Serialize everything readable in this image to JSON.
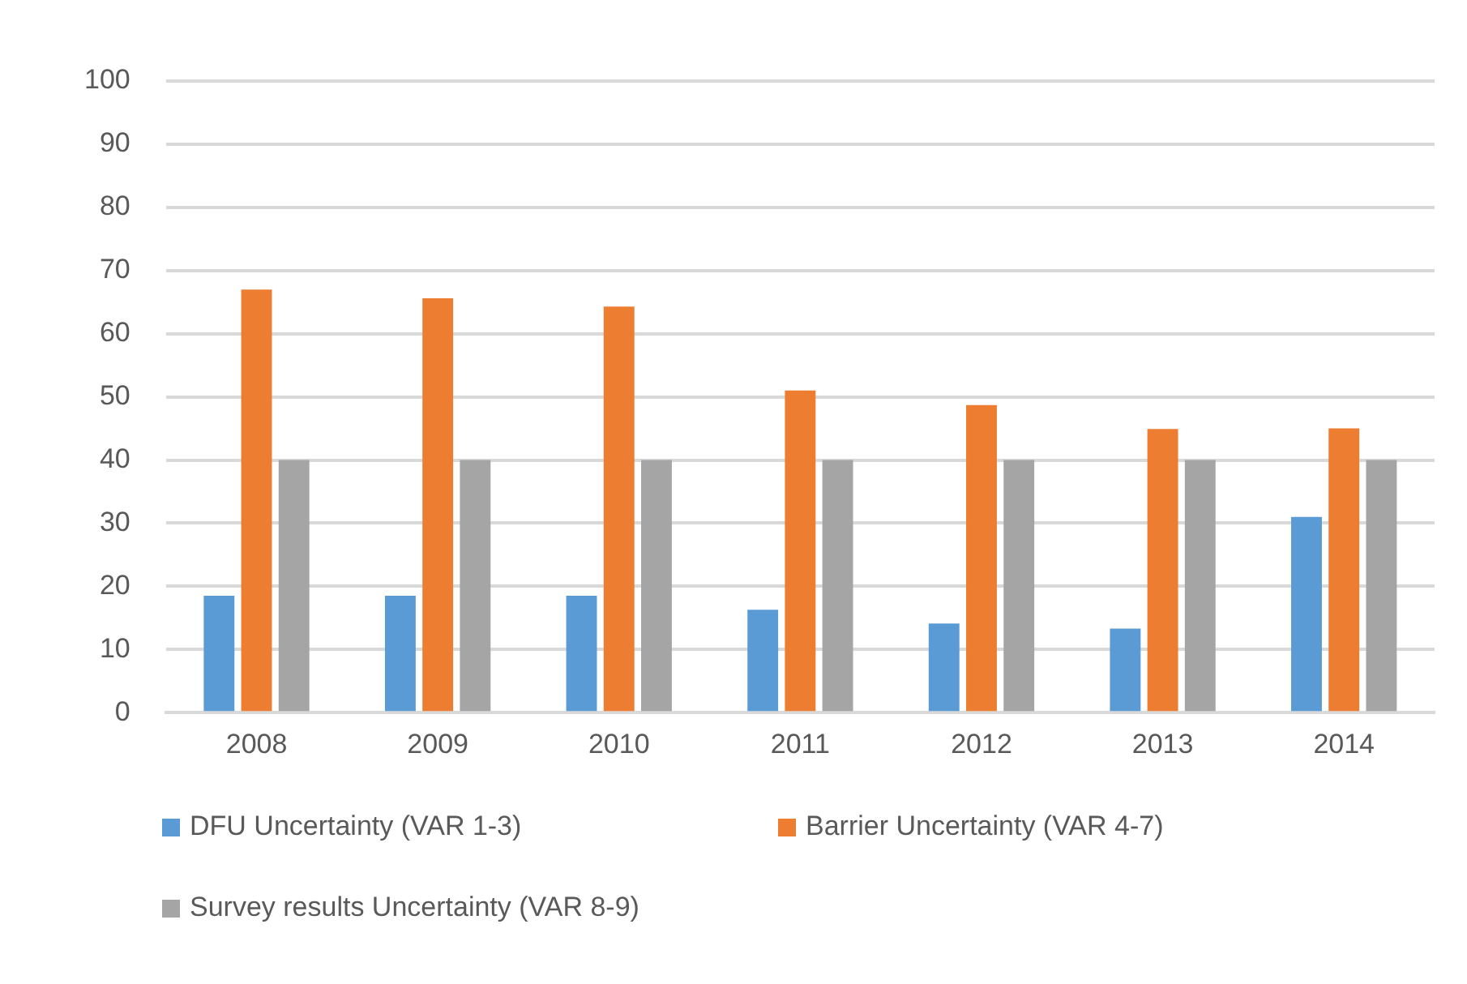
{
  "chart_data": {
    "type": "bar",
    "categories": [
      "2008",
      "2009",
      "2010",
      "2011",
      "2012",
      "2013",
      "2014"
    ],
    "series": [
      {
        "name": "DFU Uncertainty (VAR 1-3)",
        "color": "#5b9bd5",
        "values": [
          18.5,
          18.5,
          18.5,
          16.3,
          14.1,
          13.3,
          31
        ]
      },
      {
        "name": "Barrier Uncertainty (VAR 4-7)",
        "color": "#ed7d31",
        "values": [
          67,
          65.6,
          64.3,
          51,
          48.7,
          44.9,
          45
        ]
      },
      {
        "name": "Survey results Uncertainty (VAR 8-9)",
        "color": "#a5a5a5",
        "values": [
          40,
          40,
          40,
          40,
          40,
          40,
          40
        ]
      }
    ],
    "ylim": [
      0,
      100
    ],
    "yticks": [
      0,
      10,
      20,
      30,
      40,
      50,
      60,
      70,
      80,
      90,
      100
    ],
    "grid": "y",
    "legend": "bottom"
  }
}
